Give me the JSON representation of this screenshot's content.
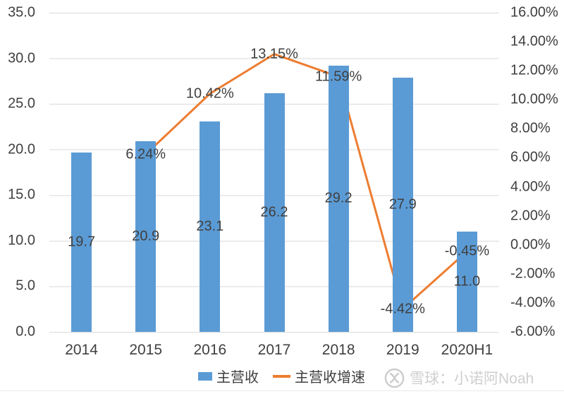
{
  "chart_data": {
    "type": "bar",
    "subtype": "bar+line combo (dual axis)",
    "title": "",
    "categories": [
      "2014",
      "2015",
      "2016",
      "2017",
      "2018",
      "2019",
      "2020H1"
    ],
    "series": [
      {
        "name": "主营收",
        "type": "bar",
        "axis": "left",
        "values": [
          19.7,
          20.9,
          23.1,
          26.2,
          29.2,
          27.9,
          11.0
        ],
        "data_labels": [
          "19.7",
          "20.9",
          "23.1",
          "26.2",
          "29.2",
          "27.9",
          "11.0"
        ]
      },
      {
        "name": "主营收增速",
        "type": "line",
        "axis": "right",
        "values": [
          null,
          6.24,
          10.42,
          13.15,
          11.59,
          -4.42,
          -0.45
        ],
        "data_labels": [
          null,
          "6.24%",
          "10.42%",
          "13.15%",
          "11.59%",
          "-4.42%",
          "-0.45%"
        ]
      }
    ],
    "left_axis": {
      "min": 0,
      "max": 35,
      "step": 5,
      "tick_labels_top_down": [
        "35.0",
        "30.0",
        "25.0",
        "20.0",
        "15.0",
        "10.0",
        "5.0",
        "0.0"
      ]
    },
    "right_axis": {
      "min": -6,
      "max": 16,
      "step": 2,
      "tick_labels_top_down": [
        "16.00%",
        "14.00%",
        "12.00%",
        "10.00%",
        "8.00%",
        "6.00%",
        "4.00%",
        "2.00%",
        "0.00%",
        "-2.00%",
        "-4.00%",
        "-6.00%"
      ]
    },
    "grid": true,
    "legend_position": "bottom"
  },
  "legend": {
    "bar_label": "主营收",
    "line_label": "主营收增速"
  },
  "watermark": {
    "logo": "xueqiu-logo",
    "text": "雪球：小诺阿Noah"
  },
  "colors": {
    "bar": "#5B9BD5",
    "line": "#ED7D31",
    "grid": "#D9D9D9",
    "axis_text": "#404040",
    "watermark": "#CFCFCF"
  }
}
